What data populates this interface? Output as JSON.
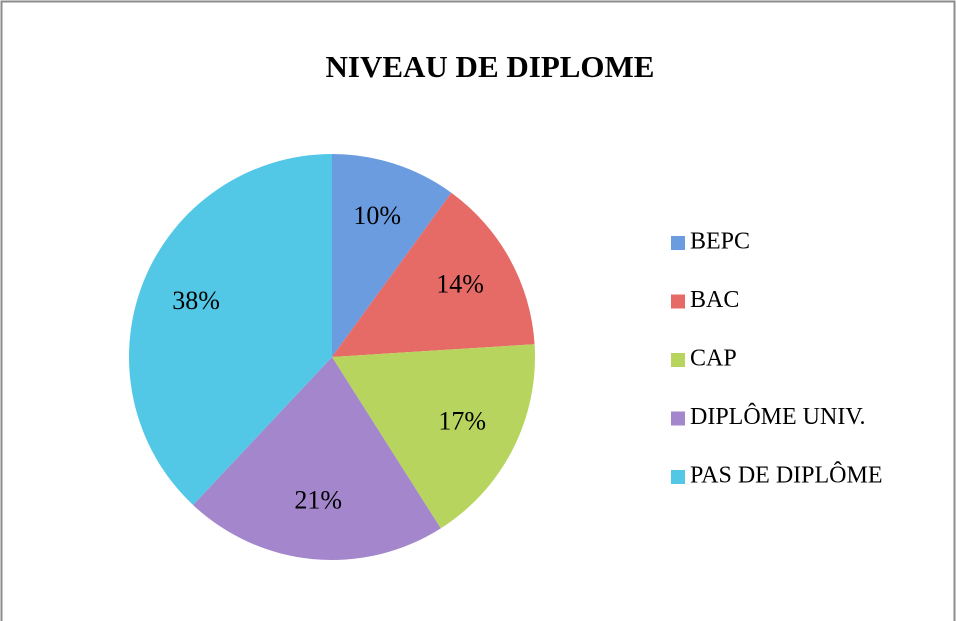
{
  "chart_data": {
    "type": "pie",
    "title": "NIVEAU DE DIPLOME",
    "categories": [
      "BEPC",
      "BAC",
      "CAP",
      "DIPLÔME UNIV.",
      "PAS DE DIPLÔME"
    ],
    "values": [
      10,
      14,
      17,
      21,
      38
    ],
    "value_labels": [
      "10%",
      "14%",
      "17%",
      "21%",
      "38%"
    ],
    "colors": [
      "#6b9ce0",
      "#e66b67",
      "#b7d55e",
      "#a386cb",
      "#52c8e6"
    ],
    "legend": "right"
  }
}
